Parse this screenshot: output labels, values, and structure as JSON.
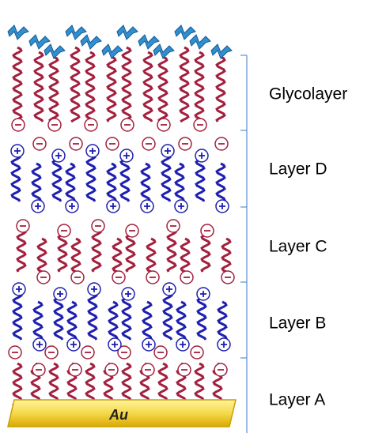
{
  "labels": [
    "Glycolayer",
    "Layer D",
    "Layer C",
    "Layer B",
    "Layer A"
  ],
  "substrate": "Au"
}
